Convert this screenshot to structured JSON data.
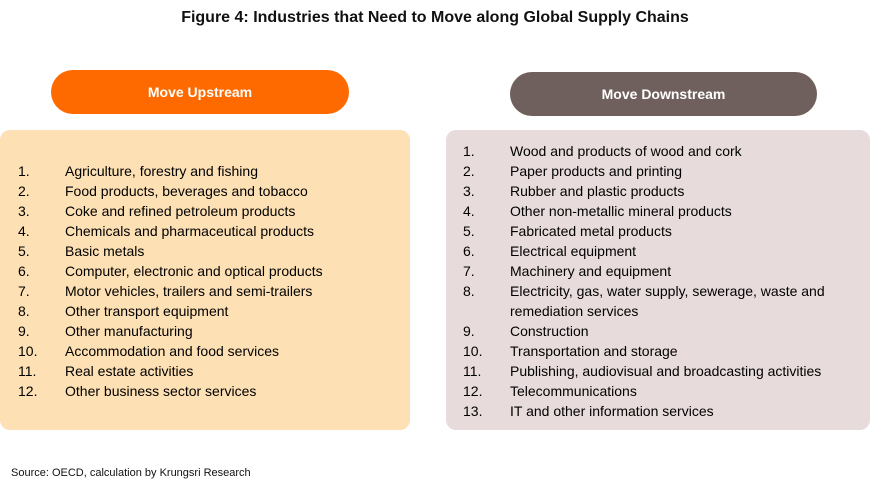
{
  "title": "Figure 4: Industries that Need to Move along Global Supply Chains",
  "upstream": {
    "label": "Move Upstream",
    "items": [
      {
        "num": "1.",
        "text": "Agriculture, forestry and fishing"
      },
      {
        "num": "2.",
        "text": "Food products, beverages and tobacco"
      },
      {
        "num": "3.",
        "text": "Coke and refined petroleum products"
      },
      {
        "num": "4.",
        "text": "Chemicals and pharmaceutical products"
      },
      {
        "num": "5.",
        "text": "Basic metals"
      },
      {
        "num": "6.",
        "text": "Computer, electronic and optical products"
      },
      {
        "num": "7.",
        "text": "Motor vehicles, trailers and semi-trailers"
      },
      {
        "num": "8.",
        "text": "Other transport equipment"
      },
      {
        "num": "9.",
        "text": "Other manufacturing"
      },
      {
        "num": "10.",
        "text": "Accommodation and food services"
      },
      {
        "num": "11.",
        "text": "Real estate activities"
      },
      {
        "num": "12.",
        "text": "Other business sector services"
      }
    ]
  },
  "downstream": {
    "label": "Move Downstream",
    "items": [
      {
        "num": "1.",
        "text": "Wood and products of wood and cork"
      },
      {
        "num": "2.",
        "text": "Paper products and printing"
      },
      {
        "num": "3.",
        "text": "Rubber and plastic products"
      },
      {
        "num": "4.",
        "text": "Other non-metallic mineral products"
      },
      {
        "num": "5.",
        "text": "Fabricated metal products"
      },
      {
        "num": "6.",
        "text": "Electrical equipment"
      },
      {
        "num": "7.",
        "text": "Machinery and equipment"
      },
      {
        "num": "8.",
        "text": "Electricity, gas, water supply, sewerage, waste and remediation services"
      },
      {
        "num": "9.",
        "text": "Construction"
      },
      {
        "num": "10.",
        "text": "Transportation and storage"
      },
      {
        "num": "11.",
        "text": "Publishing, audiovisual and broadcasting activities"
      },
      {
        "num": "12.",
        "text": "Telecommunications"
      },
      {
        "num": "13.",
        "text": "IT and other information services"
      }
    ]
  },
  "source": "Source: OECD, calculation by Krungsri Research",
  "colors": {
    "upstream_accent": "#ff6a00",
    "upstream_panel": "#fde0b3",
    "downstream_accent": "#70605d",
    "downstream_panel": "#e7dcdb"
  }
}
